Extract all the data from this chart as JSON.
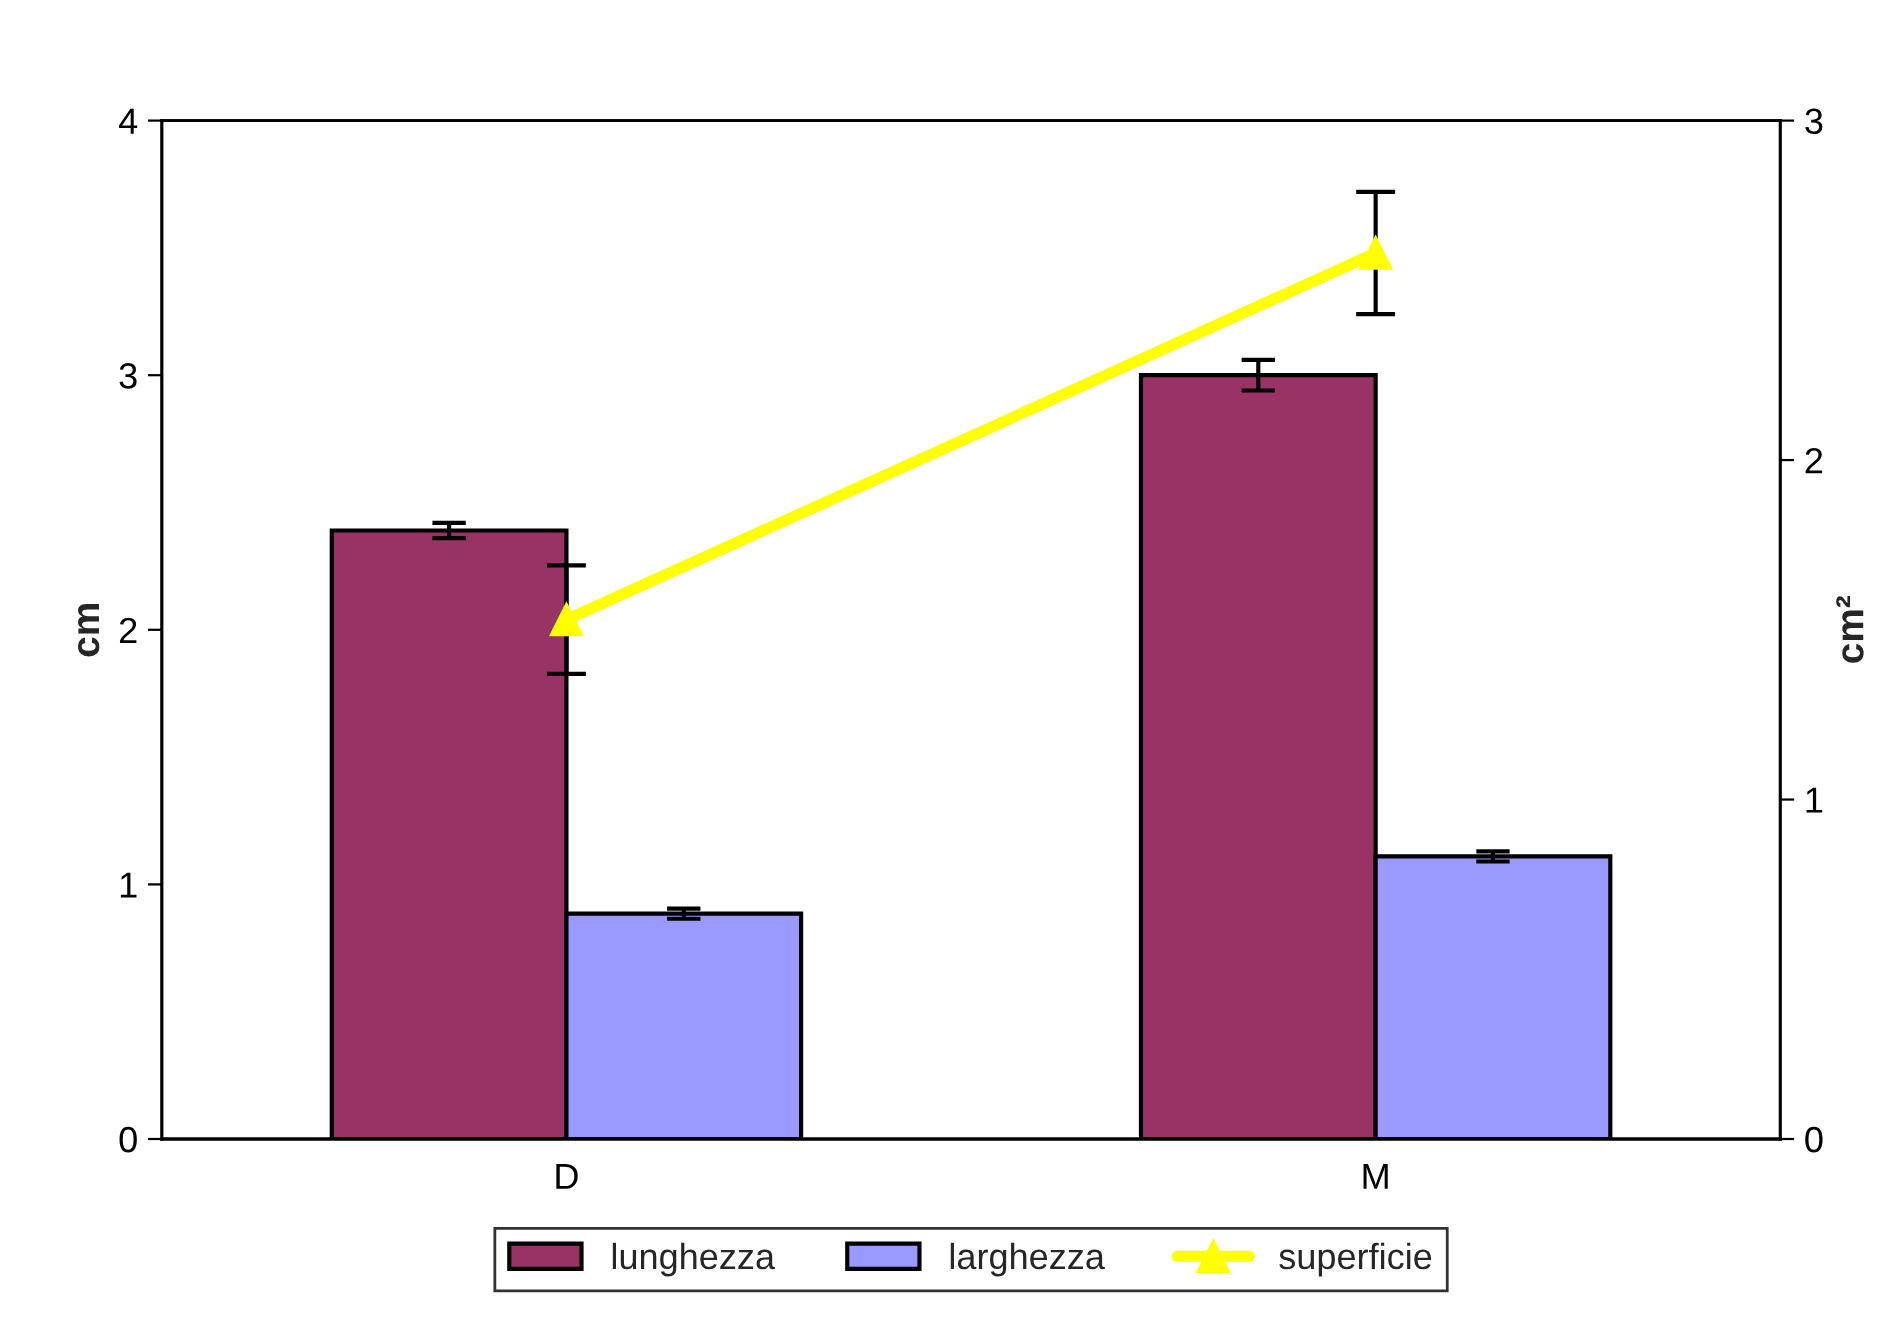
{
  "chart_data": {
    "type": "bar",
    "ylabel": "cm",
    "y2label": "cm²",
    "categories": [
      "D",
      "M"
    ],
    "series": [
      {
        "name": "lunghezza",
        "color": "#993366",
        "values": [
          2.39,
          3.0
        ],
        "errors": [
          0.03,
          0.06
        ]
      },
      {
        "name": "larghezza",
        "color": "#9999ff",
        "values": [
          0.885,
          1.11
        ],
        "errors": [
          0.02,
          0.02
        ]
      },
      {
        "name": "superficie",
        "type": "line",
        "axis": "y2",
        "color": "#ffff00",
        "marker": "triangle",
        "values": [
          1.53,
          2.61
        ],
        "errors": [
          0.16,
          0.18
        ]
      }
    ],
    "ylim": [
      0,
      4
    ],
    "yticks": [
      0,
      1,
      2,
      3,
      4
    ],
    "y2lim": [
      0,
      3
    ],
    "y2ticks": [
      0,
      1,
      2,
      3
    ],
    "legend": "bottom",
    "grid": false
  }
}
